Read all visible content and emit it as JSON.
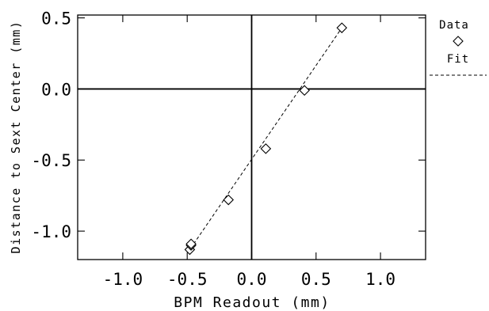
{
  "chart_data": {
    "type": "scatter",
    "xlabel": "BPM Readout (mm)",
    "ylabel": "Distance to Sext Center (mm)",
    "xlim": [
      -1.35,
      1.35
    ],
    "ylim": [
      -1.2,
      0.52
    ],
    "x_ticks": [
      -1.0,
      -0.5,
      0.0,
      0.5,
      1.0
    ],
    "y_ticks": [
      -1.0,
      -0.5,
      0.0,
      0.5
    ],
    "x_tick_labels": [
      "-1.0",
      "-0.5",
      "0.0",
      "0.5",
      "1.0"
    ],
    "y_tick_labels": [
      "-1.0",
      "-0.5",
      "0.0",
      "0.5"
    ],
    "zero_lines": true,
    "grid": false,
    "legend": {
      "position": "right",
      "entries": [
        {
          "label": "Data",
          "marker": "diamond"
        },
        {
          "label": "Fit",
          "line": "dashed"
        }
      ]
    },
    "series": [
      {
        "name": "Data",
        "marker": "diamond",
        "points": [
          {
            "x": -0.48,
            "y": -1.13
          },
          {
            "x": -0.47,
            "y": -1.1
          },
          {
            "x": -0.47,
            "y": -1.09
          },
          {
            "x": -0.18,
            "y": -0.78
          },
          {
            "x": 0.11,
            "y": -0.42
          },
          {
            "x": 0.41,
            "y": -0.01
          },
          {
            "x": 0.7,
            "y": 0.43
          }
        ]
      },
      {
        "name": "Fit",
        "line": "dashed",
        "points": [
          {
            "x": -0.45,
            "y": -1.09
          },
          {
            "x": 0.7,
            "y": 0.43
          }
        ]
      }
    ]
  }
}
